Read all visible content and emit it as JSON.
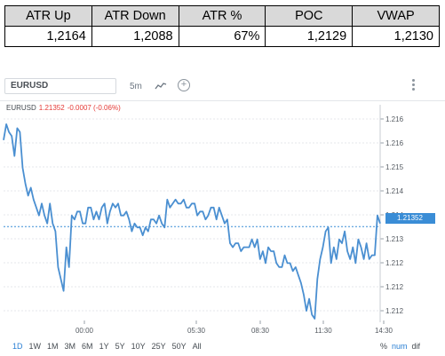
{
  "stats": {
    "headers": [
      "ATR Up",
      "ATR Down",
      "ATR %",
      "POC",
      "VWAP"
    ],
    "values": [
      "1,2164",
      "1,2088",
      "67%",
      "1,2129",
      "1,2130"
    ]
  },
  "toolbar": {
    "symbol": "EURUSD",
    "interval": "5m",
    "chart_type_icon": "line-chart-icon",
    "indicator_icon": "plus-circle-icon",
    "menu_icon": "vertical-dots-icon"
  },
  "legend": {
    "symbol": "EURUSD",
    "price": "1.21352",
    "change": "-0.0007 (-0.06%)"
  },
  "price_tag": "1.21352",
  "range_options": [
    "1D",
    "1W",
    "1M",
    "3M",
    "6M",
    "1Y",
    "5Y",
    "10Y",
    "25Y",
    "50Y",
    "All"
  ],
  "active_range": "1D",
  "scale_options": [
    "%",
    "num",
    "dif"
  ],
  "colors": {
    "line": "#4a8fd1",
    "accent": "#2a7fd4",
    "negative": "#e53935",
    "stats_header_bg": "#d9d9d9",
    "price_tag_bg": "#3a8dd6"
  },
  "chart_data": {
    "type": "line",
    "symbol": "EURUSD",
    "x_tick_labels": [
      "00:00",
      "05:30",
      "08:30",
      "11:30",
      "14:30"
    ],
    "y_tick_labels": [
      "1.216",
      "1.216",
      "1.215",
      "1.214",
      "1.214",
      "1.213",
      "1.212",
      "1.212",
      "1.212"
    ],
    "ylim": [
      1.2112,
      1.2165
    ],
    "grid": "horizontal-dashed",
    "last_price": 1.21352,
    "series": [
      {
        "values": [
          1.2157,
          1.2161,
          1.2159,
          1.2158,
          1.2153,
          1.216,
          1.2159,
          1.215,
          1.2146,
          1.2143,
          1.2145,
          1.2142,
          1.214,
          1.2138,
          1.2141,
          1.2138,
          1.2136,
          1.2141,
          1.2136,
          1.2134,
          1.2125,
          1.2122,
          1.2119,
          1.213,
          1.2125,
          1.2138,
          1.2137,
          1.2139,
          1.2139,
          1.2136,
          1.2136,
          1.214,
          1.214,
          1.2137,
          1.2139,
          1.2137,
          1.214,
          1.2141,
          1.2136,
          1.2139,
          1.2141,
          1.214,
          1.2141,
          1.2138,
          1.2138,
          1.2139,
          1.2137,
          1.2134,
          1.2136,
          1.2135,
          1.2135,
          1.2133,
          1.2135,
          1.2134,
          1.2137,
          1.2137,
          1.2136,
          1.2138,
          1.2136,
          1.2135,
          1.2142,
          1.214,
          1.2141,
          1.2142,
          1.2141,
          1.2141,
          1.2142,
          1.214,
          1.214,
          1.2141,
          1.2141,
          1.2138,
          1.2139,
          1.2139,
          1.2137,
          1.2138,
          1.214,
          1.214,
          1.2137,
          1.214,
          1.2138,
          1.2136,
          1.2137,
          1.2131,
          1.213,
          1.2131,
          1.2131,
          1.2129,
          1.213,
          1.213,
          1.213,
          1.2132,
          1.213,
          1.2132,
          1.2127,
          1.2129,
          1.2126,
          1.213,
          1.2129,
          1.2129,
          1.2126,
          1.2125,
          1.2125,
          1.2128,
          1.2126,
          1.2126,
          1.2124,
          1.2125,
          1.2123,
          1.2121,
          1.2118,
          1.2114,
          1.2117,
          1.2113,
          1.2112,
          1.2122,
          1.2127,
          1.213,
          1.2134,
          1.2135,
          1.2126,
          1.213,
          1.2127,
          1.2132,
          1.2131,
          1.2134,
          1.2129,
          1.2127,
          1.213,
          1.2126,
          1.2132,
          1.213,
          1.2127,
          1.2131,
          1.2127,
          1.2128,
          1.2128,
          1.2138,
          1.2136
        ]
      }
    ]
  }
}
